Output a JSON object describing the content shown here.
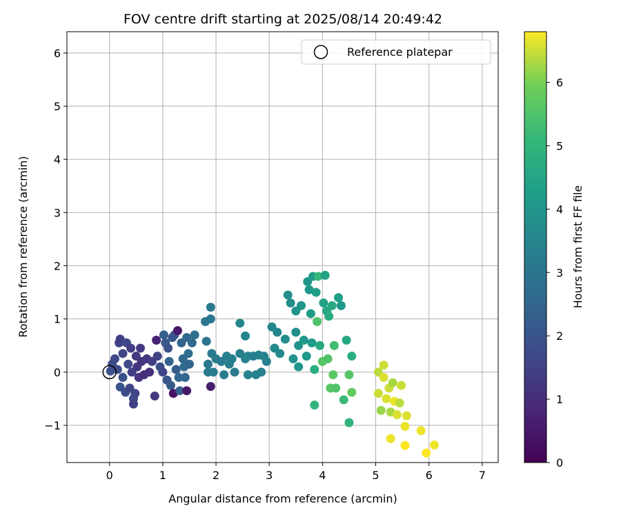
{
  "chart_data": {
    "type": "scatter",
    "title": "FOV centre drift starting at 2025/08/14 20:49:42",
    "xlabel": "Angular distance from reference (arcmin)",
    "ylabel": "Rotation from reference (arcmin)",
    "xlim": [
      -0.8,
      7.3
    ],
    "ylim": [
      -1.7,
      6.4
    ],
    "xticks": [
      0,
      1,
      2,
      3,
      4,
      5,
      6,
      7
    ],
    "yticks": [
      -1,
      0,
      1,
      2,
      3,
      4,
      5,
      6
    ],
    "grid": true,
    "legend": {
      "placement": "top-right",
      "entries": [
        "Reference platepar"
      ]
    },
    "reference_point": {
      "x": 0,
      "y": 0
    },
    "colorbar": {
      "label": "Hours from first FF file",
      "colormap": "viridis",
      "range": [
        0,
        6.8
      ],
      "ticks": [
        0,
        1,
        2,
        3,
        4,
        5,
        6
      ]
    },
    "points": [
      {
        "x": 0.02,
        "y": 0.02,
        "c": 1.9
      },
      {
        "x": 0.05,
        "y": 0.15,
        "c": 1.8
      },
      {
        "x": 0.1,
        "y": 0.25,
        "c": 1.7
      },
      {
        "x": 0.15,
        "y": 0.05,
        "c": 1.8
      },
      {
        "x": 0.18,
        "y": 0.55,
        "c": 1.5
      },
      {
        "x": 0.2,
        "y": 0.62,
        "c": 1.4
      },
      {
        "x": 0.25,
        "y": 0.35,
        "c": 1.6
      },
      {
        "x": 0.25,
        "y": -0.1,
        "c": 1.9
      },
      {
        "x": 0.2,
        "y": -0.28,
        "c": 2.0
      },
      {
        "x": 0.3,
        "y": -0.38,
        "c": 1.8
      },
      {
        "x": 0.32,
        "y": 0.55,
        "c": 1.6
      },
      {
        "x": 0.35,
        "y": 0.15,
        "c": 1.7
      },
      {
        "x": 0.38,
        "y": -0.3,
        "c": 1.6
      },
      {
        "x": 0.4,
        "y": 0.45,
        "c": 1.4
      },
      {
        "x": 0.42,
        "y": 0.0,
        "c": 1.5
      },
      {
        "x": 0.45,
        "y": -0.5,
        "c": 1.7
      },
      {
        "x": 0.45,
        "y": -0.6,
        "c": 1.5
      },
      {
        "x": 0.48,
        "y": -0.4,
        "c": 1.6
      },
      {
        "x": 0.5,
        "y": 0.3,
        "c": 1.3
      },
      {
        "x": 0.52,
        "y": 0.1,
        "c": 1.2
      },
      {
        "x": 0.55,
        "y": -0.1,
        "c": 1.2
      },
      {
        "x": 0.58,
        "y": 0.45,
        "c": 1.3
      },
      {
        "x": 0.6,
        "y": 0.2,
        "c": 1.1
      },
      {
        "x": 0.65,
        "y": -0.05,
        "c": 1.0
      },
      {
        "x": 0.7,
        "y": 0.25,
        "c": 1.2
      },
      {
        "x": 0.75,
        "y": 0.0,
        "c": 1.0
      },
      {
        "x": 0.8,
        "y": 0.2,
        "c": 1.4
      },
      {
        "x": 0.85,
        "y": -0.45,
        "c": 1.3
      },
      {
        "x": 0.88,
        "y": 0.6,
        "c": 0.7
      },
      {
        "x": 0.9,
        "y": 0.3,
        "c": 1.5
      },
      {
        "x": 0.95,
        "y": 0.1,
        "c": 1.8
      },
      {
        "x": 1.0,
        "y": 0.0,
        "c": 1.6
      },
      {
        "x": 1.02,
        "y": 0.7,
        "c": 2.3
      },
      {
        "x": 1.05,
        "y": 0.55,
        "c": 2.1
      },
      {
        "x": 1.08,
        "y": -0.15,
        "c": 2.0
      },
      {
        "x": 1.1,
        "y": 0.45,
        "c": 1.9
      },
      {
        "x": 1.12,
        "y": 0.2,
        "c": 2.4
      },
      {
        "x": 1.15,
        "y": -0.25,
        "c": 2.2
      },
      {
        "x": 1.18,
        "y": 0.65,
        "c": 2.1
      },
      {
        "x": 1.2,
        "y": -0.4,
        "c": 0.4
      },
      {
        "x": 1.22,
        "y": 0.7,
        "c": 2.0
      },
      {
        "x": 1.25,
        "y": 0.05,
        "c": 2.2
      },
      {
        "x": 1.28,
        "y": 0.78,
        "c": 0.5
      },
      {
        "x": 1.3,
        "y": -0.1,
        "c": 2.5
      },
      {
        "x": 1.32,
        "y": -0.35,
        "c": 2.3
      },
      {
        "x": 1.35,
        "y": 0.55,
        "c": 2.4
      },
      {
        "x": 1.38,
        "y": 0.25,
        "c": 2.6
      },
      {
        "x": 1.4,
        "y": 0.1,
        "c": 2.7
      },
      {
        "x": 1.42,
        "y": -0.1,
        "c": 2.5
      },
      {
        "x": 1.45,
        "y": 0.65,
        "c": 2.6
      },
      {
        "x": 1.48,
        "y": 0.35,
        "c": 2.7
      },
      {
        "x": 1.5,
        "y": 0.15,
        "c": 2.5
      },
      {
        "x": 1.45,
        "y": -0.35,
        "c": 0.5
      },
      {
        "x": 1.55,
        "y": 0.55,
        "c": 2.6
      },
      {
        "x": 1.6,
        "y": 0.7,
        "c": 2.8
      },
      {
        "x": 1.8,
        "y": 0.95,
        "c": 3.0
      },
      {
        "x": 1.82,
        "y": 0.58,
        "c": 3.0
      },
      {
        "x": 1.85,
        "y": 0.15,
        "c": 3.1
      },
      {
        "x": 1.85,
        "y": 0.0,
        "c": 3.1
      },
      {
        "x": 1.9,
        "y": 1.22,
        "c": 3.1
      },
      {
        "x": 1.9,
        "y": 1.0,
        "c": 3.0
      },
      {
        "x": 1.92,
        "y": 0.35,
        "c": 3.2
      },
      {
        "x": 1.95,
        "y": 0.0,
        "c": 3.2
      },
      {
        "x": 1.9,
        "y": -0.27,
        "c": 0.6
      },
      {
        "x": 2.0,
        "y": 0.25,
        "c": 3.2
      },
      {
        "x": 2.1,
        "y": 0.2,
        "c": 3.1
      },
      {
        "x": 2.15,
        "y": -0.05,
        "c": 3.2
      },
      {
        "x": 2.2,
        "y": 0.3,
        "c": 3.3
      },
      {
        "x": 2.25,
        "y": 0.15,
        "c": 3.2
      },
      {
        "x": 2.3,
        "y": 0.25,
        "c": 3.3
      },
      {
        "x": 2.35,
        "y": 0.0,
        "c": 3.2
      },
      {
        "x": 2.45,
        "y": 0.35,
        "c": 3.3
      },
      {
        "x": 2.45,
        "y": 0.92,
        "c": 3.5
      },
      {
        "x": 2.55,
        "y": 0.68,
        "c": 3.5
      },
      {
        "x": 2.55,
        "y": 0.25,
        "c": 3.4
      },
      {
        "x": 2.6,
        "y": 0.3,
        "c": 3.4
      },
      {
        "x": 2.6,
        "y": -0.05,
        "c": 3.4
      },
      {
        "x": 2.7,
        "y": 0.3,
        "c": 3.3
      },
      {
        "x": 2.75,
        "y": -0.05,
        "c": 3.4
      },
      {
        "x": 2.8,
        "y": 0.32,
        "c": 3.4
      },
      {
        "x": 2.85,
        "y": 0.0,
        "c": 3.3
      },
      {
        "x": 2.9,
        "y": 0.3,
        "c": 3.4
      },
      {
        "x": 2.95,
        "y": 0.2,
        "c": 3.4
      },
      {
        "x": 3.05,
        "y": 0.85,
        "c": 3.5
      },
      {
        "x": 3.1,
        "y": 0.45,
        "c": 3.6
      },
      {
        "x": 3.15,
        "y": 0.75,
        "c": 3.5
      },
      {
        "x": 3.2,
        "y": 0.35,
        "c": 3.6
      },
      {
        "x": 3.3,
        "y": 0.62,
        "c": 3.7
      },
      {
        "x": 3.35,
        "y": 1.45,
        "c": 3.8
      },
      {
        "x": 3.4,
        "y": 1.3,
        "c": 3.8
      },
      {
        "x": 3.45,
        "y": 0.25,
        "c": 3.9
      },
      {
        "x": 3.5,
        "y": 1.15,
        "c": 3.9
      },
      {
        "x": 3.5,
        "y": 0.75,
        "c": 3.8
      },
      {
        "x": 3.55,
        "y": 0.5,
        "c": 3.9
      },
      {
        "x": 3.55,
        "y": 0.1,
        "c": 4.0
      },
      {
        "x": 3.6,
        "y": 1.25,
        "c": 4.0
      },
      {
        "x": 3.65,
        "y": 0.6,
        "c": 4.0
      },
      {
        "x": 3.7,
        "y": 0.3,
        "c": 4.1
      },
      {
        "x": 3.72,
        "y": 1.7,
        "c": 4.0
      },
      {
        "x": 3.75,
        "y": 1.55,
        "c": 4.1
      },
      {
        "x": 3.78,
        "y": 1.1,
        "c": 4.2
      },
      {
        "x": 3.8,
        "y": 0.55,
        "c": 4.2
      },
      {
        "x": 3.82,
        "y": 1.8,
        "c": 4.2
      },
      {
        "x": 3.85,
        "y": 0.05,
        "c": 4.8
      },
      {
        "x": 3.85,
        "y": -0.62,
        "c": 5.0
      },
      {
        "x": 3.88,
        "y": 1.5,
        "c": 4.3
      },
      {
        "x": 3.9,
        "y": 0.95,
        "c": 5.5
      },
      {
        "x": 3.92,
        "y": 1.8,
        "c": 5.1
      },
      {
        "x": 3.95,
        "y": 0.5,
        "c": 4.6
      },
      {
        "x": 4.0,
        "y": 0.2,
        "c": 5.6
      },
      {
        "x": 4.02,
        "y": 1.3,
        "c": 4.4
      },
      {
        "x": 4.05,
        "y": 1.82,
        "c": 4.4
      },
      {
        "x": 4.08,
        "y": 1.15,
        "c": 4.5
      },
      {
        "x": 4.1,
        "y": 0.25,
        "c": 5.5
      },
      {
        "x": 4.12,
        "y": 1.05,
        "c": 4.7
      },
      {
        "x": 4.15,
        "y": -0.3,
        "c": 5.6
      },
      {
        "x": 4.18,
        "y": 1.25,
        "c": 4.6
      },
      {
        "x": 4.2,
        "y": -0.05,
        "c": 5.7
      },
      {
        "x": 4.22,
        "y": 0.5,
        "c": 5.3
      },
      {
        "x": 4.25,
        "y": -0.3,
        "c": 5.5
      },
      {
        "x": 4.3,
        "y": 1.4,
        "c": 4.3
      },
      {
        "x": 4.35,
        "y": 1.25,
        "c": 4.1
      },
      {
        "x": 4.4,
        "y": -0.52,
        "c": 5.2
      },
      {
        "x": 4.45,
        "y": 0.6,
        "c": 4.6
      },
      {
        "x": 4.5,
        "y": -0.05,
        "c": 5.6
      },
      {
        "x": 4.5,
        "y": -0.95,
        "c": 4.9
      },
      {
        "x": 4.55,
        "y": 0.3,
        "c": 4.8
      },
      {
        "x": 4.55,
        "y": -0.38,
        "c": 5.8
      },
      {
        "x": 5.05,
        "y": 0.0,
        "c": 6.4
      },
      {
        "x": 5.05,
        "y": -0.4,
        "c": 6.5
      },
      {
        "x": 5.1,
        "y": -0.72,
        "c": 6.2
      },
      {
        "x": 5.15,
        "y": -0.1,
        "c": 6.6
      },
      {
        "x": 5.15,
        "y": 0.13,
        "c": 6.5
      },
      {
        "x": 5.2,
        "y": -0.5,
        "c": 6.6
      },
      {
        "x": 5.25,
        "y": -0.3,
        "c": 6.5
      },
      {
        "x": 5.28,
        "y": -0.75,
        "c": 6.3
      },
      {
        "x": 5.28,
        "y": -1.25,
        "c": 6.7
      },
      {
        "x": 5.32,
        "y": -0.2,
        "c": 6.3
      },
      {
        "x": 5.35,
        "y": -0.55,
        "c": 6.7
      },
      {
        "x": 5.4,
        "y": -0.8,
        "c": 6.6
      },
      {
        "x": 5.45,
        "y": -0.58,
        "c": 6.4
      },
      {
        "x": 5.48,
        "y": -0.25,
        "c": 6.5
      },
      {
        "x": 5.55,
        "y": -1.02,
        "c": 6.7
      },
      {
        "x": 5.55,
        "y": -1.38,
        "c": 6.8
      },
      {
        "x": 5.58,
        "y": -0.82,
        "c": 6.6
      },
      {
        "x": 5.85,
        "y": -1.1,
        "c": 6.7
      },
      {
        "x": 5.95,
        "y": -1.52,
        "c": 6.8
      },
      {
        "x": 6.1,
        "y": -1.37,
        "c": 6.7
      }
    ]
  }
}
